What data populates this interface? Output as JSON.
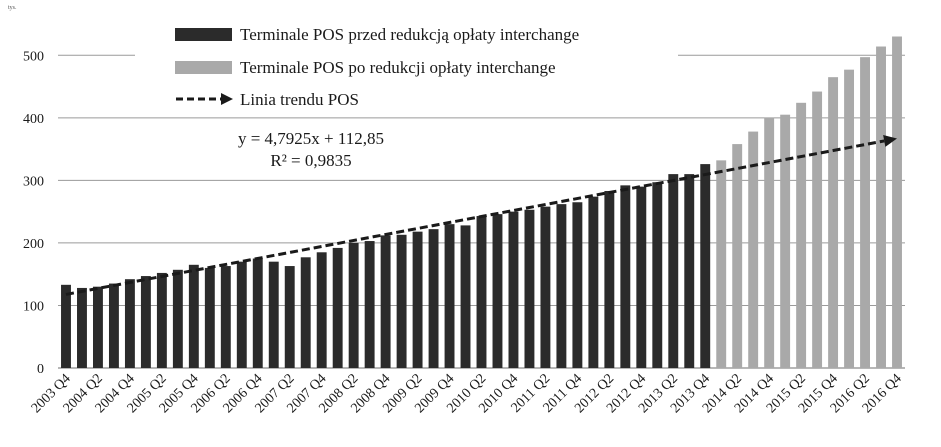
{
  "chart_data": {
    "type": "bar",
    "unit_label": "tys.",
    "ylim": [
      0,
      550
    ],
    "yticks": [
      0,
      100,
      200,
      300,
      400,
      500
    ],
    "grid": true,
    "legend_position": "top-center",
    "colors": {
      "before": "#2b2b2b",
      "after": "#a9a9a9",
      "trend": "#1a1a1a",
      "grid": "#9a9a9a"
    },
    "legend": {
      "before": "Terminale POS przed redukcją opłaty interchange",
      "after": "Terminale POS po redukcji opłaty interchange",
      "trend": "Linia trendu POS"
    },
    "equation": "y = 4,7925x + 112,85",
    "r_squared": "R² = 0,9835",
    "trend": {
      "slope": 4.7925,
      "intercept": 112.85
    },
    "x_tick_labels": [
      "2003 Q4",
      "2004 Q2",
      "2004 Q4",
      "2005 Q2",
      "2005 Q4",
      "2006 Q2",
      "2006 Q4",
      "2007 Q2",
      "2007 Q4",
      "2008 Q2",
      "2008 Q4",
      "2009 Q2",
      "2009 Q4",
      "2010 Q2",
      "2010 Q4",
      "2011 Q2",
      "2011 Q4",
      "2012 Q2",
      "2012 Q4",
      "2013 Q2",
      "2013 Q4",
      "2014 Q2",
      "2014 Q4",
      "2015 Q2",
      "2015 Q4",
      "2016 Q2",
      "2016 Q4"
    ],
    "series": [
      {
        "name": "Terminale POS przed redukcją opłaty interchange",
        "values": [
          133,
          128,
          130,
          135,
          142,
          147,
          152,
          157,
          165,
          160,
          163,
          170,
          175,
          170,
          163,
          177,
          185,
          192,
          200,
          203,
          212,
          213,
          218,
          222,
          230,
          228,
          243,
          246,
          250,
          253,
          258,
          262,
          265,
          274,
          283,
          292,
          290,
          297,
          310,
          310,
          326
        ]
      },
      {
        "name": "Terminale POS po redukcji opłaty interchange",
        "values": [
          332,
          358,
          378,
          400,
          405,
          424,
          442,
          465,
          477,
          497,
          514,
          530
        ]
      }
    ]
  }
}
